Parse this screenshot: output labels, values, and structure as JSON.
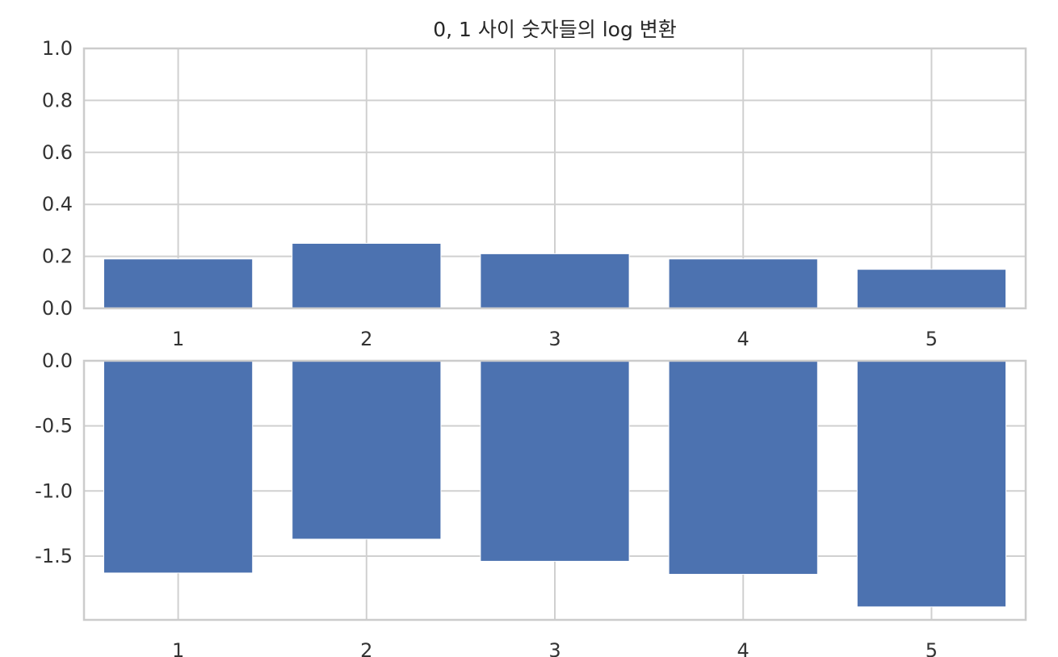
{
  "chart_data": [
    {
      "type": "bar",
      "title": "0, 1 사이 숫자들의 log 변환",
      "categories": [
        "1",
        "2",
        "3",
        "4",
        "5"
      ],
      "values": [
        0.19,
        0.25,
        0.21,
        0.19,
        0.15
      ],
      "ylim": [
        0,
        1.0
      ],
      "yticks": [
        "0.0",
        "0.2",
        "0.4",
        "0.6",
        "0.8",
        "1.0"
      ],
      "ytick_values": [
        0,
        0.2,
        0.4,
        0.6,
        0.8,
        1.0
      ],
      "grid": true,
      "bar_color": "#4c72b0"
    },
    {
      "type": "bar",
      "title": "",
      "categories": [
        "1",
        "2",
        "3",
        "4",
        "5"
      ],
      "values": [
        -1.63,
        -1.37,
        -1.54,
        -1.64,
        -1.89
      ],
      "ylim": [
        -1.99,
        0
      ],
      "yticks": [
        "0.0",
        "-0.5",
        "-1.0",
        "-1.5"
      ],
      "ytick_values": [
        0,
        -0.5,
        -1.0,
        -1.5
      ],
      "grid": true,
      "bar_color": "#4c72b0"
    }
  ]
}
